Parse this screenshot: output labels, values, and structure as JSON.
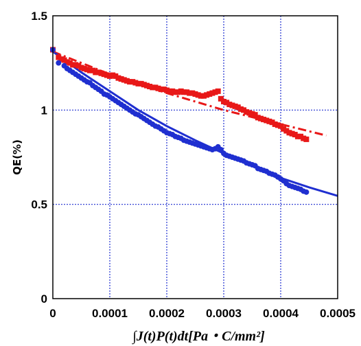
{
  "chart_data": {
    "type": "scatter",
    "title": "",
    "xlabel": "∫J(t)P(t)dt[Pa・C/mm²]",
    "ylabel": "QE(%)",
    "xlim": [
      0,
      0.0005
    ],
    "ylim": [
      0,
      1.5
    ],
    "x_ticks": [
      "0",
      "0.0001",
      "0.0002",
      "0.0003",
      "0.0004",
      "0.0005"
    ],
    "y_ticks": [
      "0",
      "0.5",
      "1",
      "1.5"
    ],
    "grid": true,
    "colors": {
      "series_a": "#1f2fd0",
      "series_b": "#e81818",
      "grid": "#1f2fd0",
      "axis": "#000000"
    },
    "series": [
      {
        "marker": "square",
        "color": "#e81818",
        "points": [
          [
            0.0,
            1.32
          ],
          [
            1e-05,
            1.28
          ],
          [
            1.5e-05,
            1.27
          ],
          [
            2e-05,
            1.265
          ],
          [
            2.5e-05,
            1.255
          ],
          [
            3e-05,
            1.25
          ],
          [
            3.5e-05,
            1.24
          ],
          [
            4e-05,
            1.24
          ],
          [
            4.5e-05,
            1.235
          ],
          [
            5e-05,
            1.225
          ],
          [
            5.5e-05,
            1.22
          ],
          [
            6e-05,
            1.215
          ],
          [
            6.5e-05,
            1.21
          ],
          [
            7e-05,
            1.21
          ],
          [
            7.5e-05,
            1.2
          ],
          [
            8e-05,
            1.2
          ],
          [
            8.5e-05,
            1.195
          ],
          [
            9e-05,
            1.19
          ],
          [
            9.5e-05,
            1.185
          ],
          [
            0.0001,
            1.18
          ],
          [
            0.000105,
            1.185
          ],
          [
            0.00011,
            1.18
          ],
          [
            0.000115,
            1.17
          ],
          [
            0.00012,
            1.165
          ],
          [
            0.000125,
            1.16
          ],
          [
            0.00013,
            1.155
          ],
          [
            0.000135,
            1.15
          ],
          [
            0.00014,
            1.15
          ],
          [
            0.000145,
            1.145
          ],
          [
            0.00015,
            1.14
          ],
          [
            0.000155,
            1.14
          ],
          [
            0.00016,
            1.135
          ],
          [
            0.000165,
            1.13
          ],
          [
            0.00017,
            1.125
          ],
          [
            0.000175,
            1.12
          ],
          [
            0.00018,
            1.12
          ],
          [
            0.000185,
            1.115
          ],
          [
            0.00019,
            1.11
          ],
          [
            0.000195,
            1.11
          ],
          [
            0.0002,
            1.105
          ],
          [
            0.000205,
            1.1
          ],
          [
            0.00021,
            1.1
          ],
          [
            0.000215,
            1.095
          ],
          [
            0.00022,
            1.095
          ],
          [
            0.000225,
            1.1
          ],
          [
            0.00023,
            1.095
          ],
          [
            0.000235,
            1.095
          ],
          [
            0.00024,
            1.09
          ],
          [
            0.000245,
            1.09
          ],
          [
            0.00025,
            1.085
          ],
          [
            0.000255,
            1.08
          ],
          [
            0.00026,
            1.075
          ],
          [
            0.000265,
            1.075
          ],
          [
            0.00027,
            1.08
          ],
          [
            0.000275,
            1.085
          ],
          [
            0.00028,
            1.09
          ],
          [
            0.000285,
            1.095
          ],
          [
            0.00029,
            1.1
          ],
          [
            0.000295,
            1.06
          ],
          [
            0.0003,
            1.045
          ],
          [
            0.000305,
            1.04
          ],
          [
            0.00031,
            1.03
          ],
          [
            0.000315,
            1.025
          ],
          [
            0.00032,
            1.02
          ],
          [
            0.000325,
            1.015
          ],
          [
            0.00033,
            1.005
          ],
          [
            0.000335,
            1.0
          ],
          [
            0.00034,
            0.99
          ],
          [
            0.000345,
            0.985
          ],
          [
            0.00035,
            0.98
          ],
          [
            0.000355,
            0.975
          ],
          [
            0.00036,
            0.96
          ],
          [
            0.000365,
            0.955
          ],
          [
            0.00037,
            0.95
          ],
          [
            0.000375,
            0.945
          ],
          [
            0.00038,
            0.94
          ],
          [
            0.000385,
            0.935
          ],
          [
            0.00039,
            0.925
          ],
          [
            0.000395,
            0.92
          ],
          [
            0.0004,
            0.915
          ],
          [
            0.000405,
            0.9
          ],
          [
            0.00041,
            0.89
          ],
          [
            0.000415,
            0.88
          ],
          [
            0.00042,
            0.875
          ],
          [
            0.000425,
            0.87
          ],
          [
            0.00043,
            0.86
          ],
          [
            0.000435,
            0.86
          ],
          [
            0.00044,
            0.85
          ],
          [
            0.000445,
            0.845
          ]
        ]
      },
      {
        "marker": "circle",
        "color": "#1f2fd0",
        "points": [
          [
            0.0,
            1.32
          ],
          [
            1e-05,
            1.25
          ],
          [
            2e-05,
            1.235
          ],
          [
            2.5e-05,
            1.22
          ],
          [
            3e-05,
            1.21
          ],
          [
            3.5e-05,
            1.2
          ],
          [
            4e-05,
            1.19
          ],
          [
            4.5e-05,
            1.18
          ],
          [
            5e-05,
            1.17
          ],
          [
            5.5e-05,
            1.16
          ],
          [
            6e-05,
            1.15
          ],
          [
            6.5e-05,
            1.145
          ],
          [
            7e-05,
            1.13
          ],
          [
            7.5e-05,
            1.12
          ],
          [
            8e-05,
            1.11
          ],
          [
            8.5e-05,
            1.1
          ],
          [
            9e-05,
            1.085
          ],
          [
            9.5e-05,
            1.08
          ],
          [
            0.0001,
            1.07
          ],
          [
            0.000105,
            1.06
          ],
          [
            0.00011,
            1.05
          ],
          [
            0.000115,
            1.04
          ],
          [
            0.00012,
            1.03
          ],
          [
            0.000125,
            1.02
          ],
          [
            0.00013,
            1.01
          ],
          [
            0.000135,
            1.0
          ],
          [
            0.00014,
            0.99
          ],
          [
            0.000145,
            0.98
          ],
          [
            0.00015,
            0.975
          ],
          [
            0.000155,
            0.965
          ],
          [
            0.00016,
            0.955
          ],
          [
            0.000165,
            0.945
          ],
          [
            0.00017,
            0.935
          ],
          [
            0.000175,
            0.925
          ],
          [
            0.00018,
            0.915
          ],
          [
            0.000185,
            0.91
          ],
          [
            0.00019,
            0.9
          ],
          [
            0.000195,
            0.89
          ],
          [
            0.0002,
            0.88
          ],
          [
            0.000205,
            0.875
          ],
          [
            0.00021,
            0.87
          ],
          [
            0.000215,
            0.86
          ],
          [
            0.00022,
            0.855
          ],
          [
            0.000225,
            0.85
          ],
          [
            0.00023,
            0.84
          ],
          [
            0.000235,
            0.835
          ],
          [
            0.00024,
            0.83
          ],
          [
            0.000245,
            0.825
          ],
          [
            0.00025,
            0.82
          ],
          [
            0.000255,
            0.815
          ],
          [
            0.00026,
            0.81
          ],
          [
            0.000265,
            0.805
          ],
          [
            0.00027,
            0.8
          ],
          [
            0.000275,
            0.795
          ],
          [
            0.00028,
            0.79
          ],
          [
            0.000285,
            0.795
          ],
          [
            0.00029,
            0.805
          ],
          [
            0.000295,
            0.79
          ],
          [
            0.0003,
            0.77
          ],
          [
            0.000305,
            0.76
          ],
          [
            0.00031,
            0.755
          ],
          [
            0.000315,
            0.75
          ],
          [
            0.00032,
            0.745
          ],
          [
            0.000325,
            0.74
          ],
          [
            0.00033,
            0.735
          ],
          [
            0.000335,
            0.73
          ],
          [
            0.00034,
            0.72
          ],
          [
            0.000345,
            0.715
          ],
          [
            0.00035,
            0.71
          ],
          [
            0.000355,
            0.705
          ],
          [
            0.00036,
            0.69
          ],
          [
            0.000365,
            0.685
          ],
          [
            0.00037,
            0.68
          ],
          [
            0.000375,
            0.675
          ],
          [
            0.00038,
            0.665
          ],
          [
            0.000385,
            0.66
          ],
          [
            0.00039,
            0.655
          ],
          [
            0.000395,
            0.645
          ],
          [
            0.0004,
            0.635
          ],
          [
            0.000405,
            0.625
          ],
          [
            0.00041,
            0.61
          ],
          [
            0.000415,
            0.6
          ],
          [
            0.00042,
            0.595
          ],
          [
            0.000425,
            0.59
          ],
          [
            0.00043,
            0.585
          ],
          [
            0.000435,
            0.58
          ],
          [
            0.00044,
            0.57
          ],
          [
            0.000445,
            0.565
          ]
        ]
      }
    ],
    "fits": [
      {
        "style": "dash-dot",
        "color": "#e81818",
        "points": [
          [
            0.0,
            1.31
          ],
          [
            0.0001,
            1.19
          ],
          [
            0.0002,
            1.09
          ],
          [
            0.0003,
            1.0
          ],
          [
            0.0004,
            0.925
          ],
          [
            0.00048,
            0.865
          ]
        ]
      },
      {
        "style": "solid",
        "color": "#1f2fd0",
        "points": [
          [
            0.0,
            1.31
          ],
          [
            5e-05,
            1.2
          ],
          [
            0.0001,
            1.1
          ],
          [
            0.00015,
            1.0
          ],
          [
            0.0002,
            0.915
          ],
          [
            0.00025,
            0.84
          ],
          [
            0.0003,
            0.77
          ],
          [
            0.00035,
            0.71
          ],
          [
            0.0004,
            0.64
          ],
          [
            0.00045,
            0.59
          ],
          [
            0.0005,
            0.545
          ]
        ]
      }
    ]
  }
}
